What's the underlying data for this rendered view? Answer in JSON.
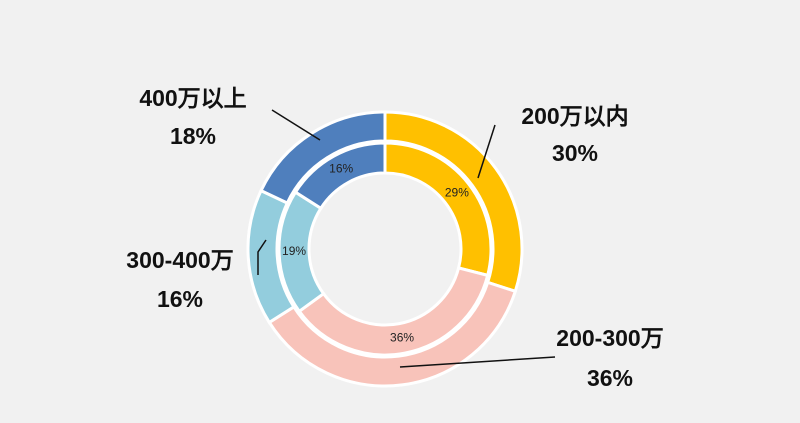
{
  "chart_data": {
    "type": "pie",
    "categories": [
      "200万以内",
      "200-300万",
      "300-400万",
      "400万以上"
    ],
    "colors": [
      "#FFC000",
      "#F8C3BA",
      "#93CDDD",
      "#4F7FBD"
    ],
    "series": [
      {
        "values": [
          30,
          36,
          16,
          18
        ],
        "value_labels": [
          "30%",
          "36%",
          "16%",
          "18%"
        ]
      },
      {
        "values": [
          29,
          36,
          19,
          16
        ],
        "value_labels": [
          "29%",
          "36%",
          "19%",
          "16%"
        ]
      }
    ]
  }
}
